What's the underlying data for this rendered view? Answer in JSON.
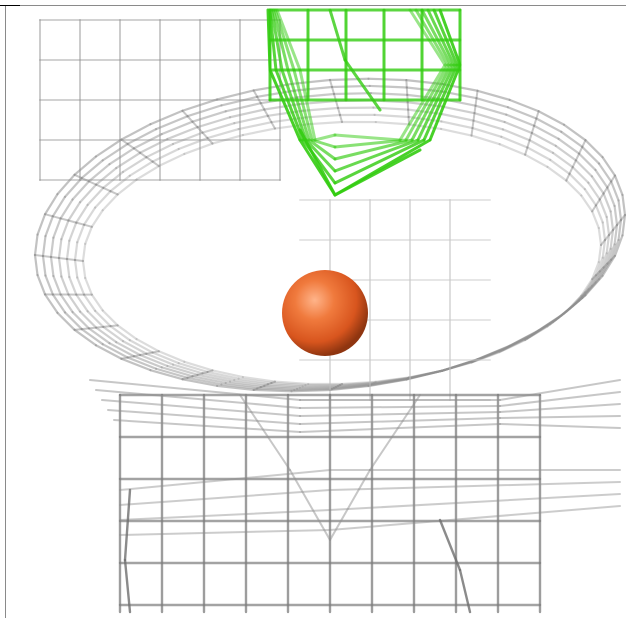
{
  "scene": {
    "background": "#ffffff",
    "mesh_color": "#8f8f8f",
    "highlight_mesh_color": "#33cc11",
    "sphere_color": "#e8672b",
    "objects": [
      "gray-wireframe-mesh",
      "green-wireframe-mesh",
      "orange-sphere"
    ]
  }
}
